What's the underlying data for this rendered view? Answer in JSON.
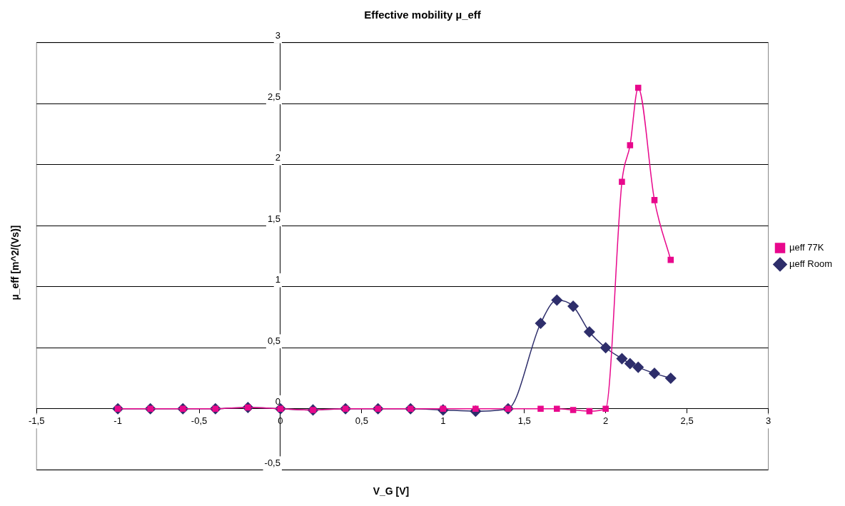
{
  "chart_data": {
    "type": "line",
    "title": "Effective mobility µ_eff",
    "xlabel": "V_G [V]",
    "ylabel": "µ_eff [m^2/(Vs)]",
    "x": [
      -1,
      -0.8,
      -0.6,
      -0.4,
      -0.2,
      0,
      0.2,
      0.4,
      0.6,
      0.8,
      1,
      1.2,
      1.4,
      1.6,
      1.7,
      1.8,
      1.9,
      2.0,
      2.1,
      2.15,
      2.2,
      2.3,
      2.4
    ],
    "series": [
      {
        "name": "µeff Room",
        "color": "#2e2e6b",
        "marker": "diamond",
        "values": [
          0,
          0,
          0,
          0,
          0.01,
          0,
          -0.01,
          0,
          0,
          0,
          -0.01,
          -0.02,
          0,
          0.7,
          0.89,
          0.84,
          0.63,
          0.5,
          0.41,
          0.37,
          0.34,
          0.29,
          0.25
        ]
      },
      {
        "name": "µeff 77K",
        "color": "#e8088c",
        "marker": "square",
        "values": [
          0,
          0,
          0,
          0,
          0.01,
          0,
          -0.01,
          0,
          0,
          0,
          0,
          0,
          0,
          0,
          0,
          -0.01,
          -0.02,
          0,
          1.86,
          2.16,
          2.63,
          1.71,
          1.22
        ]
      }
    ],
    "xlim": [
      -1.5,
      3
    ],
    "xticks": [
      {
        "value": -1.5,
        "label": "-1,5"
      },
      -1,
      {
        "value": -0.5,
        "label": "-0,5"
      },
      0,
      {
        "value": 0.5,
        "label": "0,5"
      },
      1,
      {
        "value": 1.5,
        "label": "1,5"
      },
      2,
      {
        "value": 2.5,
        "label": "2,5"
      },
      3
    ],
    "ylim": [
      -0.5,
      3
    ],
    "yticks": [
      {
        "value": -0.5,
        "label": "-0,5"
      },
      0,
      {
        "value": 0.5,
        "label": "0,5"
      },
      1,
      {
        "value": 1.5,
        "label": "1,5"
      },
      2,
      {
        "value": 2.5,
        "label": "2,5"
      },
      3
    ],
    "grid": "y",
    "legend": "right"
  }
}
